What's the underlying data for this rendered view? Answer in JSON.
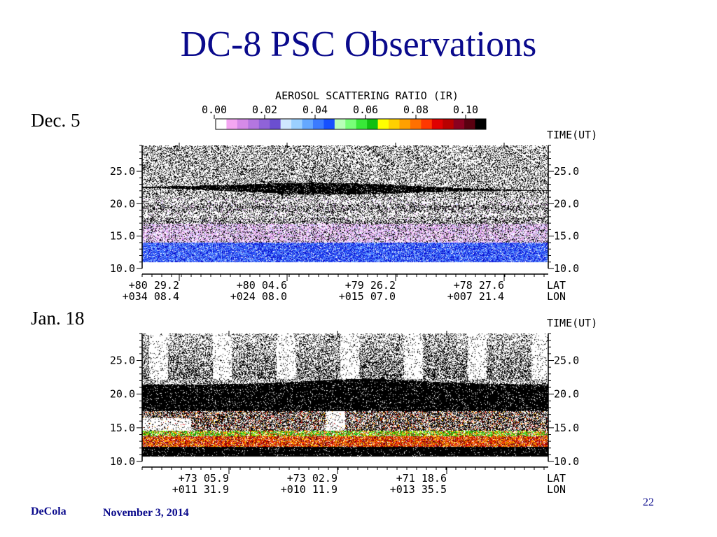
{
  "slide": {
    "title": "DC-8 PSC Observations",
    "panel_labels": [
      "Dec. 5",
      "Jan. 18"
    ],
    "author": "DeCola",
    "date": "November 3, 2014",
    "page_number": "22",
    "title_color": "#0a0a8c"
  },
  "colorbar": {
    "title": "AEROSOL SCATTERING RATIO (IR)",
    "tick_labels": [
      "0.00",
      "0.02",
      "0.04",
      "0.06",
      "0.08",
      "0.10"
    ],
    "colors": [
      "#ffffff",
      "#f4a6f2",
      "#d58ae8",
      "#b476e0",
      "#8f63d8",
      "#6b4fd0",
      "#cfe8ff",
      "#9bd0ff",
      "#65a8ff",
      "#3b7bff",
      "#1650ff",
      "#b8ffb8",
      "#78ff78",
      "#38e838",
      "#10c010",
      "#ffff00",
      "#ffd000",
      "#ffa000",
      "#ff7000",
      "#ff3800",
      "#e00000",
      "#b80000",
      "#8a0020",
      "#5a0010",
      "#000000"
    ]
  },
  "chart_data": [
    {
      "type": "heatmap",
      "title": "Dec. 5",
      "y_tick_labels": [
        "25.0",
        "20.0",
        "15.0",
        "10.0"
      ],
      "ylim": [
        10.0,
        29.0
      ],
      "top_right_label": "TIME(UT)",
      "x_lat_labels": [
        "+80 29.2",
        "+80 04.6",
        "+79 26.2",
        "+78 27.6"
      ],
      "x_lon_labels": [
        "+034 08.4",
        "+024 08.0",
        "+015 07.0",
        "+007 21.4"
      ],
      "lat_axis_label": "LAT",
      "lon_axis_label": "LON",
      "layers": [
        {
          "name": "dark layer",
          "y_range": [
            21.5,
            23.5
          ],
          "ratio": 0.1
        },
        {
          "name": "blue band",
          "y_range": [
            11.0,
            14.0
          ],
          "ratio": 0.04
        },
        {
          "name": "pale pink band",
          "y_range": [
            14.0,
            17.0
          ],
          "ratio": 0.01
        }
      ]
    },
    {
      "type": "heatmap",
      "title": "Jan. 18",
      "y_tick_labels": [
        "25.0",
        "20.0",
        "15.0",
        "10.0"
      ],
      "ylim": [
        10.0,
        29.0
      ],
      "top_right_label": "TIME(UT)",
      "x_lat_labels": [
        "+73 05.9",
        "+73 02.9",
        "+71 18.6"
      ],
      "x_lon_labels": [
        "+011 31.9",
        "+010 11.9",
        "+013 35.5"
      ],
      "lat_axis_label": "LAT",
      "lon_axis_label": "LON",
      "layers": [
        {
          "name": "thick dark PSC layer",
          "y_range": [
            17.5,
            22.5
          ],
          "ratio": 0.1
        },
        {
          "name": "red/orange band",
          "y_range": [
            11.0,
            14.0
          ],
          "ratio": 0.09
        },
        {
          "name": "green fringe",
          "y_range": [
            13.5,
            14.5
          ],
          "ratio": 0.05
        }
      ]
    }
  ]
}
